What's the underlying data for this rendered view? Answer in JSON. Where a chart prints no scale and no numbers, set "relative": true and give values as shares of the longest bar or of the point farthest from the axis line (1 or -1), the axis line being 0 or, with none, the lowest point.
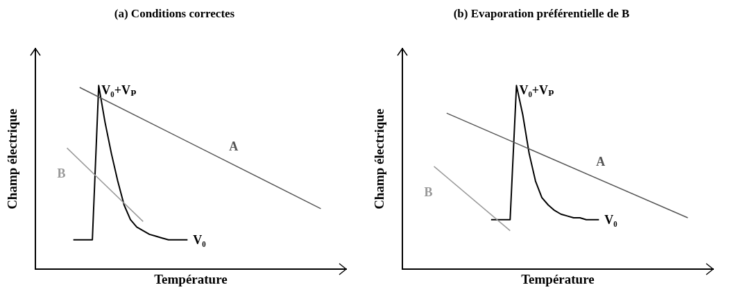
{
  "chart_data": [
    {
      "type": "line",
      "title": "(a) Conditions correctes",
      "xlabel": "Température",
      "ylabel": "Champ électrique",
      "relative": true,
      "marker": "none",
      "categories": [
        null,
        null,
        null,
        null,
        null,
        null,
        null,
        null,
        null,
        null,
        null,
        null,
        null,
        null,
        null,
        null,
        null,
        null,
        null,
        null,
        null,
        null,
        null,
        null,
        null,
        null,
        null,
        null,
        null,
        null,
        null,
        null,
        null,
        null,
        null,
        null,
        null,
        null,
        null,
        null,
        null,
        null,
        null,
        null,
        null,
        null,
        null,
        null,
        null,
        null
      ],
      "series": [
        {
          "name": "A",
          "color": "#555555",
          "values": [
            null,
            null,
            null,
            null,
            null,
            null,
            null,
            0.99,
            null,
            null,
            null,
            null,
            null,
            null,
            null,
            null,
            null,
            null,
            null,
            null,
            null,
            null,
            null,
            null,
            null,
            null,
            null,
            null,
            null,
            null,
            null,
            null,
            null,
            null,
            null,
            null,
            null,
            null,
            null,
            null,
            null,
            null,
            null,
            null,
            null,
            0.33,
            null,
            null,
            null,
            null
          ]
        },
        {
          "name": "B",
          "color": "#999999",
          "values": [
            null,
            null,
            null,
            null,
            null,
            0.66,
            null,
            null,
            null,
            null,
            null,
            null,
            null,
            null,
            null,
            null,
            null,
            0.26,
            null,
            null,
            null,
            null,
            null,
            null,
            null,
            null,
            null,
            null,
            null,
            null,
            null,
            null,
            null,
            null,
            null,
            null,
            null,
            null,
            null,
            null,
            null,
            null,
            null,
            null,
            null,
            null,
            null,
            null,
            null,
            null
          ]
        },
        {
          "color": "#000000",
          "values": [
            null,
            null,
            null,
            null,
            null,
            null,
            0.16,
            0.16,
            0.16,
            0.16,
            1.0,
            0.8,
            0.63,
            0.48,
            0.35,
            0.27,
            0.23,
            0.21,
            0.19,
            0.18,
            0.17,
            0.16,
            0.16,
            0.16,
            0.16,
            null,
            null,
            null,
            null,
            null,
            null,
            null,
            null,
            null,
            null,
            null,
            null,
            null,
            null,
            null,
            null,
            null,
            null,
            null,
            null,
            null,
            null,
            null,
            null,
            null
          ]
        }
      ],
      "annotations": [
        "V₀+Vₚ",
        "V₀"
      ]
    },
    {
      "type": "line",
      "title": "(b) Evaporation préférentielle de B",
      "xlabel": "Température",
      "ylabel": "Champ électrique",
      "relative": true,
      "marker": "none",
      "categories": [
        null,
        null,
        null,
        null,
        null,
        null,
        null,
        null,
        null,
        null,
        null,
        null,
        null,
        null,
        null,
        null,
        null,
        null,
        null,
        null,
        null,
        null,
        null,
        null,
        null,
        null,
        null,
        null,
        null,
        null,
        null,
        null,
        null,
        null,
        null,
        null,
        null,
        null,
        null,
        null,
        null,
        null,
        null,
        null,
        null,
        null,
        null,
        null,
        null,
        null
      ],
      "series": [
        {
          "name": "A",
          "color": "#555555",
          "values": [
            null,
            null,
            null,
            null,
            null,
            null,
            null,
            0.85,
            null,
            null,
            null,
            null,
            null,
            null,
            null,
            null,
            null,
            null,
            null,
            null,
            null,
            null,
            null,
            null,
            null,
            null,
            null,
            null,
            null,
            null,
            null,
            null,
            null,
            null,
            null,
            null,
            null,
            null,
            null,
            null,
            null,
            null,
            null,
            null,
            null,
            0.28,
            null,
            null,
            null,
            null
          ]
        },
        {
          "name": "B",
          "color": "#999999",
          "values": [
            null,
            null,
            null,
            null,
            null,
            0.56,
            null,
            null,
            null,
            null,
            null,
            null,
            null,
            null,
            null,
            null,
            null,
            0.21,
            null,
            null,
            null,
            null,
            null,
            null,
            null,
            null,
            null,
            null,
            null,
            null,
            null,
            null,
            null,
            null,
            null,
            null,
            null,
            null,
            null,
            null,
            null,
            null,
            null,
            null,
            null,
            null,
            null,
            null,
            null,
            null
          ]
        },
        {
          "color": "#000000",
          "values": [
            null,
            null,
            null,
            null,
            null,
            null,
            null,
            null,
            null,
            null,
            null,
            null,
            null,
            null,
            0.27,
            0.27,
            0.27,
            0.27,
            1.0,
            0.84,
            0.63,
            0.48,
            0.39,
            0.35,
            0.32,
            0.3,
            0.29,
            0.28,
            0.28,
            0.27,
            0.27,
            0.27,
            null,
            null,
            null,
            null,
            null,
            null,
            null,
            null,
            null,
            null,
            null,
            null,
            null,
            null,
            null,
            null,
            null,
            null
          ]
        }
      ],
      "annotations": [
        "V₀+Vₚ",
        "V₀"
      ]
    }
  ]
}
